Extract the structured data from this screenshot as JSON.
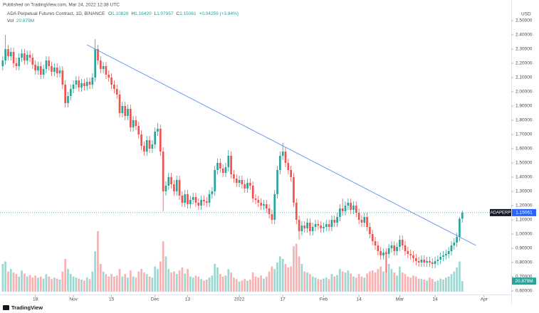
{
  "chart_data": {
    "type": "candlestick",
    "published": "Published on TradingView.com, Mar 24, 2022 12:38 UTC",
    "title": "ADA Perpetual Futures Contract, 1D, BINANCE",
    "symbol": "ADAPERP",
    "currency": "USD",
    "brand": "TradingView",
    "ohlc_letters": [
      "O",
      "H",
      "L",
      "C"
    ],
    "last_bar_labels": [
      "1.10828",
      "1.16420",
      "1.07957",
      "1.15061"
    ],
    "change_label": "+0.04259 (+3.84%)",
    "volume_name": "Vol",
    "volume_label": "20.879M",
    "up_color": "#26a69a",
    "down_color": "#ef5350",
    "x": [
      "2021-10-06",
      "2021-10-07",
      "2021-10-08",
      "2021-10-09",
      "2021-10-10",
      "2021-10-11",
      "2021-10-12",
      "2021-10-13",
      "2021-10-14",
      "2021-10-15",
      "2021-10-16",
      "2021-10-17",
      "2021-10-18",
      "2021-10-19",
      "2021-10-20",
      "2021-10-21",
      "2021-10-22",
      "2021-10-23",
      "2021-10-24",
      "2021-10-25",
      "2021-10-26",
      "2021-10-27",
      "2021-10-28",
      "2021-10-29",
      "2021-10-30",
      "2021-10-31",
      "2021-11-01",
      "2021-11-02",
      "2021-11-03",
      "2021-11-04",
      "2021-11-05",
      "2021-11-06",
      "2021-11-07",
      "2021-11-08",
      "2021-11-09",
      "2021-11-10",
      "2021-11-11",
      "2021-11-12",
      "2021-11-13",
      "2021-11-14",
      "2021-11-15",
      "2021-11-16",
      "2021-11-17",
      "2021-11-18",
      "2021-11-19",
      "2021-11-20",
      "2021-11-21",
      "2021-11-22",
      "2021-11-23",
      "2021-11-24",
      "2021-11-25",
      "2021-11-26",
      "2021-11-27",
      "2021-11-28",
      "2021-11-29",
      "2021-11-30",
      "2021-12-01",
      "2021-12-02",
      "2021-12-03",
      "2021-12-04",
      "2021-12-05",
      "2021-12-06",
      "2021-12-07",
      "2021-12-08",
      "2021-12-09",
      "2021-12-10",
      "2021-12-11",
      "2021-12-12",
      "2021-12-13",
      "2021-12-14",
      "2021-12-15",
      "2021-12-16",
      "2021-12-17",
      "2021-12-18",
      "2021-12-19",
      "2021-12-20",
      "2021-12-21",
      "2021-12-22",
      "2021-12-23",
      "2021-12-24",
      "2021-12-25",
      "2021-12-26",
      "2021-12-27",
      "2021-12-28",
      "2021-12-29",
      "2021-12-30",
      "2021-12-31",
      "2022-01-01",
      "2022-01-02",
      "2022-01-03",
      "2022-01-04",
      "2022-01-05",
      "2022-01-06",
      "2022-01-07",
      "2022-01-08",
      "2022-01-09",
      "2022-01-10",
      "2022-01-11",
      "2022-01-12",
      "2022-01-13",
      "2022-01-14",
      "2022-01-15",
      "2022-01-16",
      "2022-01-17",
      "2022-01-18",
      "2022-01-19",
      "2022-01-20",
      "2022-01-21",
      "2022-01-22",
      "2022-01-23",
      "2022-01-24",
      "2022-01-25",
      "2022-01-26",
      "2022-01-27",
      "2022-01-28",
      "2022-01-29",
      "2022-01-30",
      "2022-01-31",
      "2022-02-01",
      "2022-02-02",
      "2022-02-03",
      "2022-02-04",
      "2022-02-05",
      "2022-02-06",
      "2022-02-07",
      "2022-02-08",
      "2022-02-09",
      "2022-02-10",
      "2022-02-11",
      "2022-02-12",
      "2022-02-13",
      "2022-02-14",
      "2022-02-15",
      "2022-02-16",
      "2022-02-17",
      "2022-02-18",
      "2022-02-19",
      "2022-02-20",
      "2022-02-21",
      "2022-02-22",
      "2022-02-23",
      "2022-02-24",
      "2022-02-25",
      "2022-02-26",
      "2022-02-27",
      "2022-02-28",
      "2022-03-01",
      "2022-03-02",
      "2022-03-03",
      "2022-03-04",
      "2022-03-05",
      "2022-03-06",
      "2022-03-07",
      "2022-03-08",
      "2022-03-09",
      "2022-03-10",
      "2022-03-11",
      "2022-03-12",
      "2022-03-13",
      "2022-03-14",
      "2022-03-15",
      "2022-03-16",
      "2022-03-17",
      "2022-03-18",
      "2022-03-19",
      "2022-03-20",
      "2022-03-21",
      "2022-03-22",
      "2022-03-23",
      "2022-03-24"
    ],
    "open": [
      2.18,
      2.22,
      2.3,
      2.25,
      2.28,
      2.2,
      2.18,
      2.24,
      2.27,
      2.22,
      2.26,
      2.24,
      2.19,
      2.15,
      2.18,
      2.12,
      2.16,
      2.22,
      2.18,
      2.14,
      2.17,
      2.13,
      2.15,
      2.05,
      1.92,
      1.97,
      2.02,
      2.05,
      2.08,
      2.03,
      2.06,
      2.04,
      2.07,
      2.05,
      2.1,
      2.3,
      2.22,
      2.16,
      2.18,
      2.12,
      2.1,
      2.05,
      2.02,
      1.98,
      1.85,
      1.9,
      1.83,
      1.88,
      1.75,
      1.8,
      1.76,
      1.7,
      1.62,
      1.58,
      1.66,
      1.6,
      1.63,
      1.72,
      1.74,
      1.58,
      1.3,
      1.34,
      1.4,
      1.35,
      1.3,
      1.38,
      1.27,
      1.22,
      1.28,
      1.21,
      1.24,
      1.26,
      1.22,
      1.2,
      1.24,
      1.23,
      1.22,
      1.28,
      1.3,
      1.45,
      1.5,
      1.46,
      1.43,
      1.47,
      1.55,
      1.42,
      1.39,
      1.36,
      1.38,
      1.35,
      1.32,
      1.36,
      1.34,
      1.25,
      1.24,
      1.22,
      1.2,
      1.21,
      1.18,
      1.14,
      1.1,
      1.28,
      1.45,
      1.55,
      1.58,
      1.5,
      1.45,
      1.4,
      1.22,
      1.1,
      1.02,
      1.06,
      1.04,
      1.08,
      1.02,
      1.05,
      1.07,
      1.06,
      1.04,
      1.05,
      1.07,
      1.05,
      1.1,
      1.08,
      1.12,
      1.18,
      1.16,
      1.2,
      1.22,
      1.17,
      1.2,
      1.15,
      1.1,
      1.08,
      1.12,
      1.05,
      1.0,
      0.95,
      0.92,
      0.88,
      0.85,
      0.87,
      0.86,
      0.9,
      0.92,
      0.88,
      0.91,
      0.96,
      0.92,
      0.88,
      0.86,
      0.85,
      0.83,
      0.81,
      0.8,
      0.82,
      0.8,
      0.81,
      0.8,
      0.79,
      0.81,
      0.82,
      0.84,
      0.85,
      0.86,
      0.88,
      0.92,
      0.94,
      0.98,
      1.10828
    ],
    "high": [
      2.25,
      2.4,
      2.33,
      2.31,
      2.31,
      2.24,
      2.27,
      2.3,
      2.3,
      2.29,
      2.29,
      2.27,
      2.22,
      2.21,
      2.21,
      2.19,
      2.25,
      2.25,
      2.21,
      2.2,
      2.2,
      2.18,
      2.18,
      2.08,
      2.0,
      2.05,
      2.08,
      2.11,
      2.11,
      2.09,
      2.09,
      2.1,
      2.1,
      2.13,
      2.37,
      2.33,
      2.25,
      2.21,
      2.21,
      2.15,
      2.13,
      2.08,
      2.05,
      2.01,
      1.93,
      1.93,
      1.91,
      1.91,
      1.83,
      1.83,
      1.79,
      1.73,
      1.65,
      1.69,
      1.69,
      1.66,
      1.75,
      1.78,
      1.77,
      1.61,
      1.37,
      1.43,
      1.43,
      1.38,
      1.41,
      1.41,
      1.3,
      1.31,
      1.31,
      1.27,
      1.29,
      1.29,
      1.25,
      1.27,
      1.27,
      1.26,
      1.31,
      1.33,
      1.48,
      1.53,
      1.53,
      1.49,
      1.5,
      1.59,
      1.58,
      1.45,
      1.42,
      1.41,
      1.41,
      1.38,
      1.39,
      1.39,
      1.37,
      1.28,
      1.27,
      1.25,
      1.24,
      1.24,
      1.21,
      1.17,
      1.31,
      1.48,
      1.58,
      1.64,
      1.61,
      1.53,
      1.48,
      1.43,
      1.25,
      1.13,
      1.09,
      1.09,
      1.11,
      1.11,
      1.08,
      1.1,
      1.1,
      1.09,
      1.08,
      1.1,
      1.1,
      1.13,
      1.13,
      1.15,
      1.21,
      1.25,
      1.23,
      1.25,
      1.25,
      1.23,
      1.23,
      1.18,
      1.13,
      1.15,
      1.15,
      1.08,
      1.03,
      0.98,
      0.95,
      0.91,
      0.9,
      0.9,
      0.93,
      0.95,
      0.95,
      0.94,
      0.99,
      0.99,
      0.95,
      0.91,
      0.89,
      0.88,
      0.86,
      0.84,
      0.85,
      0.85,
      0.84,
      0.84,
      0.83,
      0.84,
      0.85,
      0.87,
      0.88,
      0.89,
      0.91,
      0.95,
      0.97,
      1.01,
      1.12,
      1.1642
    ],
    "low": [
      2.15,
      2.19,
      2.22,
      2.22,
      2.17,
      2.15,
      2.15,
      2.21,
      2.19,
      2.19,
      2.21,
      2.16,
      2.12,
      2.12,
      2.09,
      2.09,
      2.13,
      2.15,
      2.11,
      2.11,
      2.1,
      2.1,
      2.02,
      1.89,
      1.89,
      1.94,
      1.99,
      2.02,
      2.0,
      2.0,
      2.01,
      2.01,
      2.02,
      2.02,
      2.07,
      2.19,
      2.13,
      2.13,
      2.09,
      2.07,
      2.02,
      1.99,
      1.95,
      1.82,
      1.82,
      1.8,
      1.8,
      1.72,
      1.72,
      1.73,
      1.67,
      1.59,
      1.55,
      1.55,
      1.57,
      1.57,
      1.6,
      1.69,
      1.55,
      1.16,
      1.27,
      1.31,
      1.32,
      1.27,
      1.27,
      1.24,
      1.19,
      1.19,
      1.18,
      1.18,
      1.21,
      1.19,
      1.17,
      1.17,
      1.2,
      1.19,
      1.19,
      1.25,
      1.27,
      1.42,
      1.43,
      1.4,
      1.4,
      1.44,
      1.39,
      1.36,
      1.33,
      1.33,
      1.32,
      1.29,
      1.29,
      1.31,
      1.22,
      1.21,
      1.19,
      1.17,
      1.17,
      1.15,
      1.11,
      1.07,
      1.07,
      1.25,
      1.42,
      1.52,
      1.47,
      1.42,
      1.37,
      1.19,
      1.07,
      0.96,
      0.99,
      1.01,
      1.01,
      0.99,
      0.99,
      1.02,
      1.03,
      1.01,
      1.01,
      1.02,
      1.02,
      1.02,
      1.05,
      1.05,
      1.09,
      1.13,
      1.13,
      1.17,
      1.14,
      1.14,
      1.12,
      1.07,
      1.05,
      1.05,
      1.02,
      0.97,
      0.92,
      0.89,
      0.85,
      0.82,
      0.82,
      0.73,
      0.83,
      0.87,
      0.85,
      0.85,
      0.88,
      0.89,
      0.85,
      0.83,
      0.82,
      0.8,
      0.78,
      0.77,
      0.77,
      0.77,
      0.77,
      0.77,
      0.76,
      0.76,
      0.78,
      0.79,
      0.81,
      0.82,
      0.83,
      0.85,
      0.89,
      0.91,
      0.95,
      1.07957
    ],
    "close": [
      2.22,
      2.3,
      2.25,
      2.28,
      2.2,
      2.18,
      2.24,
      2.27,
      2.22,
      2.26,
      2.24,
      2.19,
      2.15,
      2.18,
      2.12,
      2.16,
      2.22,
      2.18,
      2.14,
      2.17,
      2.13,
      2.15,
      2.05,
      1.92,
      1.97,
      2.02,
      2.05,
      2.08,
      2.03,
      2.06,
      2.04,
      2.07,
      2.05,
      2.1,
      2.3,
      2.22,
      2.16,
      2.18,
      2.12,
      2.1,
      2.05,
      2.02,
      1.98,
      1.85,
      1.9,
      1.83,
      1.88,
      1.75,
      1.8,
      1.76,
      1.7,
      1.62,
      1.58,
      1.66,
      1.6,
      1.63,
      1.72,
      1.74,
      1.58,
      1.3,
      1.34,
      1.4,
      1.35,
      1.3,
      1.38,
      1.27,
      1.22,
      1.28,
      1.21,
      1.24,
      1.26,
      1.22,
      1.2,
      1.24,
      1.23,
      1.22,
      1.28,
      1.3,
      1.45,
      1.5,
      1.46,
      1.43,
      1.47,
      1.55,
      1.42,
      1.39,
      1.36,
      1.38,
      1.35,
      1.32,
      1.36,
      1.34,
      1.25,
      1.24,
      1.22,
      1.2,
      1.21,
      1.18,
      1.14,
      1.1,
      1.28,
      1.45,
      1.55,
      1.58,
      1.5,
      1.45,
      1.4,
      1.22,
      1.1,
      1.02,
      1.06,
      1.04,
      1.08,
      1.02,
      1.05,
      1.07,
      1.06,
      1.04,
      1.05,
      1.07,
      1.05,
      1.1,
      1.08,
      1.12,
      1.18,
      1.16,
      1.2,
      1.22,
      1.17,
      1.2,
      1.15,
      1.1,
      1.08,
      1.12,
      1.05,
      1.0,
      0.95,
      0.92,
      0.88,
      0.85,
      0.87,
      0.86,
      0.9,
      0.92,
      0.88,
      0.91,
      0.96,
      0.92,
      0.88,
      0.86,
      0.85,
      0.83,
      0.81,
      0.8,
      0.82,
      0.8,
      0.81,
      0.8,
      0.79,
      0.81,
      0.82,
      0.84,
      0.85,
      0.86,
      0.88,
      0.92,
      0.94,
      0.98,
      1.10802,
      1.15061
    ],
    "volume": [
      55,
      60,
      40,
      45,
      38,
      35,
      30,
      42,
      36,
      30,
      33,
      28,
      32,
      28,
      30,
      26,
      35,
      30,
      25,
      28,
      26,
      24,
      40,
      65,
      45,
      35,
      30,
      28,
      26,
      24,
      22,
      28,
      25,
      40,
      80,
      120,
      55,
      40,
      35,
      30,
      35,
      30,
      32,
      45,
      30,
      35,
      28,
      42,
      30,
      28,
      40,
      45,
      38,
      35,
      30,
      28,
      50,
      45,
      60,
      100,
      70,
      45,
      38,
      40,
      35,
      42,
      48,
      36,
      45,
      30,
      28,
      32,
      30,
      25,
      22,
      24,
      28,
      32,
      55,
      48,
      35,
      30,
      32,
      45,
      38,
      28,
      25,
      20,
      22,
      25,
      22,
      24,
      38,
      30,
      28,
      32,
      26,
      30,
      40,
      50,
      45,
      58,
      70,
      65,
      55,
      48,
      50,
      90,
      95,
      70,
      55,
      40,
      38,
      35,
      30,
      28,
      25,
      24,
      26,
      28,
      25,
      35,
      30,
      33,
      45,
      40,
      38,
      42,
      36,
      30,
      28,
      35,
      30,
      28,
      36,
      40,
      42,
      38,
      45,
      50,
      40,
      80,
      55,
      45,
      38,
      32,
      50,
      38,
      35,
      30,
      28,
      32,
      30,
      26,
      25,
      24,
      22,
      28,
      25,
      20,
      22,
      26,
      24,
      28,
      30,
      35,
      40,
      48,
      60,
      20.879
    ],
    "trendline": {
      "x": [
        "2021-11-06",
        "2022-03-29"
      ],
      "y": [
        2.33,
        0.92
      ],
      "color": "#5b8def"
    },
    "xlim": [
      "2021-10-05",
      "2022-04-11"
    ],
    "xticks": [
      {
        "value": "2021-10-18",
        "label": "18"
      },
      {
        "value": "2021-11-01",
        "label": "Nov"
      },
      {
        "value": "2021-11-15",
        "label": "15"
      },
      {
        "value": "2021-12-01",
        "label": "Dec"
      },
      {
        "value": "2021-12-13",
        "label": "13"
      },
      {
        "value": "2022-01-01",
        "label": "2022"
      },
      {
        "value": "2022-01-17",
        "label": "17"
      },
      {
        "value": "2022-02-01",
        "label": "Feb"
      },
      {
        "value": "2022-02-14",
        "label": "14"
      },
      {
        "value": "2022-03-01",
        "label": "Mar"
      },
      {
        "value": "2022-03-14",
        "label": "14"
      },
      {
        "value": "2022-04-01",
        "label": "Apr"
      }
    ],
    "ylim": [
      0.57,
      2.57
    ],
    "yticks": [
      {
        "value": 0.6,
        "label": "0.60000"
      },
      {
        "value": 0.7,
        "label": "0.70000"
      },
      {
        "value": 0.8,
        "label": "0.80000"
      },
      {
        "value": 0.9,
        "label": "0.90000"
      },
      {
        "value": 1.0,
        "label": "1.00000"
      },
      {
        "value": 1.1,
        "label": "1.10000"
      },
      {
        "value": 1.2,
        "label": "1.20000"
      },
      {
        "value": 1.3,
        "label": "1.30000"
      },
      {
        "value": 1.4,
        "label": "1.40000"
      },
      {
        "value": 1.5,
        "label": "1.50000"
      },
      {
        "value": 1.6,
        "label": "1.60000"
      },
      {
        "value": 1.7,
        "label": "1.70000"
      },
      {
        "value": 1.8,
        "label": "1.80000"
      },
      {
        "value": 1.9,
        "label": "1.90000"
      },
      {
        "value": 2.0,
        "label": "2.00000"
      },
      {
        "value": 2.1,
        "label": "2.10000"
      },
      {
        "value": 2.2,
        "label": "2.20000"
      },
      {
        "value": 2.3,
        "label": "2.30000"
      },
      {
        "value": 2.4,
        "label": "2.40000"
      },
      {
        "value": 2.5,
        "label": "2.50000"
      }
    ]
  }
}
